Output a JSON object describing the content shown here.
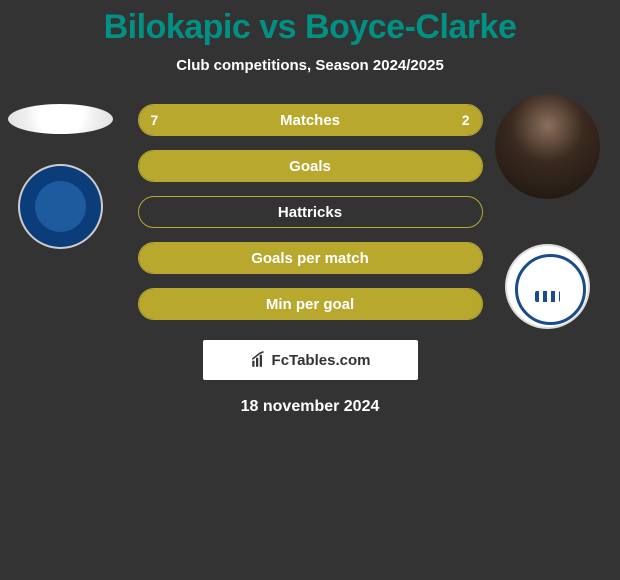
{
  "title": {
    "left_name": "Bilokapic",
    "vs": "vs",
    "right_name": "Boyce-Clarke",
    "color": "#009184"
  },
  "subtitle": "Club competitions, Season 2024/2025",
  "bar_colors": {
    "fill": "#b8a82e",
    "border": "#b8a82e",
    "empty_border": "#b8a82e"
  },
  "bars": [
    {
      "label": "Matches",
      "left_val": "7",
      "right_val": "2",
      "left_pct": 77,
      "right_pct": 23,
      "show_vals": true
    },
    {
      "label": "Goals",
      "left_val": "",
      "right_val": "",
      "left_pct": 100,
      "right_pct": 0,
      "show_vals": false
    },
    {
      "label": "Hattricks",
      "left_val": "",
      "right_val": "",
      "left_pct": 0,
      "right_pct": 0,
      "show_vals": false
    },
    {
      "label": "Goals per match",
      "left_val": "",
      "right_val": "",
      "left_pct": 100,
      "right_pct": 0,
      "show_vals": false
    },
    {
      "label": "Min per goal",
      "left_val": "",
      "right_val": "",
      "left_pct": 100,
      "right_pct": 0,
      "show_vals": false
    }
  ],
  "footer_brand": "FcTables.com",
  "date": "18 november 2024"
}
